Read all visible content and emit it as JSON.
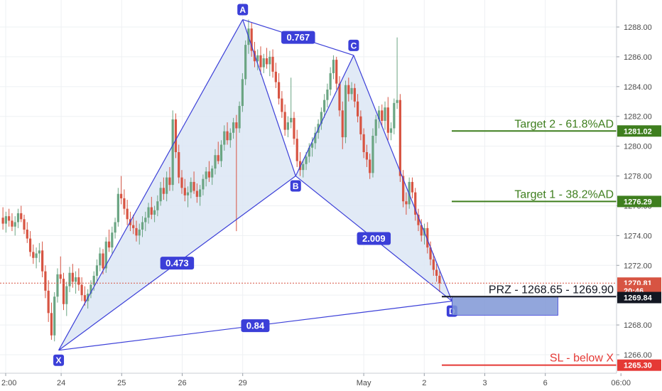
{
  "chart_data": {
    "type": "candlestick",
    "title": "",
    "y_axis": {
      "range": [
        1264.3,
        1289.5
      ],
      "ticks": [
        1266.0,
        1268.0,
        1270.0,
        1272.0,
        1274.0,
        1276.0,
        1278.0,
        1280.0,
        1282.0,
        1284.0,
        1286.0,
        1288.0
      ],
      "tick_labels": [
        "1266.00",
        "1268.00",
        "1270.00",
        "1272.00",
        "1274.00",
        "1276.00",
        "1278.00",
        "1280.00",
        "1282.00",
        "1284.00",
        "1286.00",
        "1288.00"
      ]
    },
    "x_axis": {
      "range_hours": [
        0,
        284
      ],
      "tick_labels": [
        {
          "label": "2:00",
          "hour": 0
        },
        {
          "label": "24",
          "hour": 22
        },
        {
          "label": "25",
          "hour": 46
        },
        {
          "label": "26",
          "hour": 70
        },
        {
          "label": "29",
          "hour": 94
        },
        {
          "label": "May",
          "hour": 142
        },
        {
          "label": "2",
          "hour": 166
        },
        {
          "label": "3",
          "hour": 190
        },
        {
          "label": "6",
          "hour": 214
        },
        {
          "label": "06:00",
          "hour": 244
        }
      ]
    },
    "grid": true,
    "colors": {
      "up": "#6ba583",
      "down": "#d75442",
      "pattern_line": "#3b3fd8",
      "pattern_fill": "#dce6f5",
      "target": "#3f7f1f",
      "stop": "#e53935",
      "prz_box": "#7f97d6"
    },
    "harmonic_pattern": {
      "points": [
        {
          "label": "X",
          "hour": 21,
          "price": 1266.3
        },
        {
          "label": "A",
          "hour": 94,
          "price": 1288.5
        },
        {
          "label": "B",
          "hour": 115,
          "price": 1278.0
        },
        {
          "label": "C",
          "hour": 138,
          "price": 1286.1
        },
        {
          "label": "D",
          "hour": 177,
          "price": 1269.6
        }
      ],
      "ratios": [
        {
          "label": "0.473",
          "between": [
            "X",
            "B"
          ]
        },
        {
          "label": "0.767",
          "between": [
            "A",
            "C"
          ]
        },
        {
          "label": "2.009",
          "between": [
            "B",
            "D"
          ]
        },
        {
          "label": "0.84",
          "between": [
            "X",
            "D"
          ]
        }
      ]
    },
    "annotations": [
      {
        "text": "Target 2 - 61.8%AD",
        "price": 1281.02,
        "color": "#3f7f1f"
      },
      {
        "text": "Target 1 - 38.2%AD",
        "price": 1276.29,
        "color": "#3f7f1f"
      },
      {
        "text": "PRZ - 1268.65 - 1269.90",
        "price": 1269.9,
        "color": "#131722"
      },
      {
        "text": "SL - below X",
        "price": 1265.3,
        "color": "#e53935"
      }
    ],
    "prz_zone": {
      "from_hour": 177,
      "to_hour": 219,
      "price_low": 1268.65,
      "price_high": 1269.9
    },
    "price_tags": [
      {
        "text": "1281.02",
        "price": 1281.02,
        "bg": "#3f7f1f",
        "fg": "#ffffff"
      },
      {
        "text": "1276.29",
        "price": 1276.29,
        "bg": "#3f7f1f",
        "fg": "#ffffff"
      },
      {
        "text": "1270.81",
        "price": 1270.81,
        "bg": "#d75442",
        "fg": "#ffffff"
      },
      {
        "text": "20:46",
        "price": 1270.3,
        "bg": "#d75442",
        "fg": "#ffffff"
      },
      {
        "text": "1269.84",
        "price": 1269.84,
        "bg": "#131722",
        "fg": "#ffffff"
      },
      {
        "text": "1265.30",
        "price": 1265.3,
        "bg": "#e53935",
        "fg": "#ffffff"
      }
    ],
    "last_price": 1270.81,
    "candles": [
      {
        "o": 1275.2,
        "h": 1275.9,
        "l": 1274.4,
        "c": 1274.8
      },
      {
        "o": 1274.8,
        "h": 1275.6,
        "l": 1274.2,
        "c": 1275.3
      },
      {
        "o": 1275.3,
        "h": 1275.8,
        "l": 1274.6,
        "c": 1275.0
      },
      {
        "o": 1275.0,
        "h": 1275.5,
        "l": 1274.3,
        "c": 1274.6
      },
      {
        "o": 1274.6,
        "h": 1275.3,
        "l": 1274.0,
        "c": 1274.9
      },
      {
        "o": 1274.9,
        "h": 1275.8,
        "l": 1274.5,
        "c": 1275.5
      },
      {
        "o": 1275.5,
        "h": 1276.0,
        "l": 1274.9,
        "c": 1275.1
      },
      {
        "o": 1275.1,
        "h": 1275.4,
        "l": 1274.1,
        "c": 1274.4
      },
      {
        "o": 1274.4,
        "h": 1274.9,
        "l": 1273.5,
        "c": 1273.8
      },
      {
        "o": 1273.8,
        "h": 1274.3,
        "l": 1272.6,
        "c": 1272.9
      },
      {
        "o": 1272.9,
        "h": 1273.4,
        "l": 1272.1,
        "c": 1272.5
      },
      {
        "o": 1272.5,
        "h": 1273.2,
        "l": 1271.8,
        "c": 1272.8
      },
      {
        "o": 1272.8,
        "h": 1273.5,
        "l": 1272.2,
        "c": 1273.0
      },
      {
        "o": 1273.0,
        "h": 1273.6,
        "l": 1271.2,
        "c": 1271.6
      },
      {
        "o": 1271.6,
        "h": 1272.0,
        "l": 1269.8,
        "c": 1270.3
      },
      {
        "o": 1270.3,
        "h": 1271.0,
        "l": 1268.2,
        "c": 1268.8
      },
      {
        "o": 1268.8,
        "h": 1269.5,
        "l": 1267.0,
        "c": 1267.3
      },
      {
        "o": 1267.3,
        "h": 1270.2,
        "l": 1266.9,
        "c": 1269.9
      },
      {
        "o": 1269.9,
        "h": 1271.8,
        "l": 1269.5,
        "c": 1271.4
      },
      {
        "o": 1271.4,
        "h": 1272.6,
        "l": 1270.8,
        "c": 1271.1
      },
      {
        "o": 1271.1,
        "h": 1271.5,
        "l": 1269.0,
        "c": 1269.4
      },
      {
        "o": 1269.4,
        "h": 1270.9,
        "l": 1268.6,
        "c": 1270.6
      },
      {
        "o": 1270.6,
        "h": 1271.9,
        "l": 1270.2,
        "c": 1271.5
      },
      {
        "o": 1271.5,
        "h": 1272.1,
        "l": 1270.5,
        "c": 1270.9
      },
      {
        "o": 1270.9,
        "h": 1271.6,
        "l": 1270.1,
        "c": 1271.2
      },
      {
        "o": 1271.2,
        "h": 1271.8,
        "l": 1270.3,
        "c": 1270.7
      },
      {
        "o": 1270.7,
        "h": 1271.2,
        "l": 1269.6,
        "c": 1270.0
      },
      {
        "o": 1270.0,
        "h": 1270.6,
        "l": 1269.3,
        "c": 1269.6
      },
      {
        "o": 1269.6,
        "h": 1270.4,
        "l": 1269.1,
        "c": 1270.1
      },
      {
        "o": 1270.1,
        "h": 1271.0,
        "l": 1269.8,
        "c": 1270.7
      },
      {
        "o": 1270.7,
        "h": 1271.6,
        "l": 1270.3,
        "c": 1271.3
      },
      {
        "o": 1271.3,
        "h": 1272.4,
        "l": 1270.9,
        "c": 1272.0
      },
      {
        "o": 1272.0,
        "h": 1273.2,
        "l": 1271.6,
        "c": 1272.8
      },
      {
        "o": 1272.8,
        "h": 1273.1,
        "l": 1271.4,
        "c": 1271.8
      },
      {
        "o": 1271.8,
        "h": 1273.9,
        "l": 1271.5,
        "c": 1273.6
      },
      {
        "o": 1273.6,
        "h": 1274.4,
        "l": 1272.9,
        "c": 1273.2
      },
      {
        "o": 1273.2,
        "h": 1274.6,
        "l": 1272.8,
        "c": 1274.2
      },
      {
        "o": 1274.2,
        "h": 1275.2,
        "l": 1273.8,
        "c": 1274.9
      },
      {
        "o": 1274.9,
        "h": 1277.2,
        "l": 1274.6,
        "c": 1276.8
      },
      {
        "o": 1276.8,
        "h": 1278.0,
        "l": 1276.1,
        "c": 1276.5
      },
      {
        "o": 1276.5,
        "h": 1277.1,
        "l": 1275.4,
        "c": 1275.8
      },
      {
        "o": 1275.8,
        "h": 1276.4,
        "l": 1274.7,
        "c": 1275.1
      },
      {
        "o": 1275.1,
        "h": 1275.6,
        "l": 1274.3,
        "c": 1274.7
      },
      {
        "o": 1274.7,
        "h": 1275.4,
        "l": 1274.1,
        "c": 1274.5
      },
      {
        "o": 1274.5,
        "h": 1275.0,
        "l": 1273.6,
        "c": 1274.0
      },
      {
        "o": 1274.0,
        "h": 1274.8,
        "l": 1273.4,
        "c": 1274.4
      },
      {
        "o": 1274.4,
        "h": 1275.3,
        "l": 1273.9,
        "c": 1274.9
      },
      {
        "o": 1274.9,
        "h": 1275.6,
        "l": 1274.3,
        "c": 1275.2
      },
      {
        "o": 1275.2,
        "h": 1276.2,
        "l": 1274.8,
        "c": 1275.9
      },
      {
        "o": 1275.9,
        "h": 1276.6,
        "l": 1275.1,
        "c": 1275.4
      },
      {
        "o": 1275.4,
        "h": 1276.0,
        "l": 1274.9,
        "c": 1275.7
      },
      {
        "o": 1275.7,
        "h": 1276.7,
        "l": 1275.3,
        "c": 1276.3
      },
      {
        "o": 1276.3,
        "h": 1277.6,
        "l": 1276.0,
        "c": 1277.2
      },
      {
        "o": 1277.2,
        "h": 1277.9,
        "l": 1276.4,
        "c": 1276.8
      },
      {
        "o": 1276.8,
        "h": 1278.3,
        "l": 1276.3,
        "c": 1277.9
      },
      {
        "o": 1277.9,
        "h": 1278.6,
        "l": 1277.0,
        "c": 1277.4
      },
      {
        "o": 1277.4,
        "h": 1282.4,
        "l": 1277.0,
        "c": 1281.8
      },
      {
        "o": 1281.8,
        "h": 1282.2,
        "l": 1279.2,
        "c": 1279.6
      },
      {
        "o": 1279.6,
        "h": 1280.1,
        "l": 1277.5,
        "c": 1277.9
      },
      {
        "o": 1277.9,
        "h": 1278.4,
        "l": 1276.8,
        "c": 1277.2
      },
      {
        "o": 1277.2,
        "h": 1277.8,
        "l": 1276.3,
        "c": 1276.7
      },
      {
        "o": 1276.7,
        "h": 1277.3,
        "l": 1275.9,
        "c": 1276.9
      },
      {
        "o": 1276.9,
        "h": 1277.9,
        "l": 1276.5,
        "c": 1277.6
      },
      {
        "o": 1277.6,
        "h": 1278.3,
        "l": 1276.8,
        "c": 1277.0
      },
      {
        "o": 1277.0,
        "h": 1277.5,
        "l": 1276.2,
        "c": 1276.6
      },
      {
        "o": 1276.6,
        "h": 1277.4,
        "l": 1276.0,
        "c": 1277.1
      },
      {
        "o": 1277.1,
        "h": 1278.1,
        "l": 1276.7,
        "c": 1277.8
      },
      {
        "o": 1277.8,
        "h": 1278.6,
        "l": 1277.3,
        "c": 1278.3
      },
      {
        "o": 1278.3,
        "h": 1279.0,
        "l": 1277.6,
        "c": 1277.9
      },
      {
        "o": 1277.9,
        "h": 1278.7,
        "l": 1277.4,
        "c": 1278.5
      },
      {
        "o": 1278.5,
        "h": 1279.8,
        "l": 1278.1,
        "c": 1279.4
      },
      {
        "o": 1279.4,
        "h": 1280.3,
        "l": 1278.8,
        "c": 1279.0
      },
      {
        "o": 1279.0,
        "h": 1280.4,
        "l": 1278.6,
        "c": 1280.1
      },
      {
        "o": 1280.1,
        "h": 1281.4,
        "l": 1279.7,
        "c": 1281.0
      },
      {
        "o": 1281.0,
        "h": 1281.6,
        "l": 1280.1,
        "c": 1280.4
      },
      {
        "o": 1280.4,
        "h": 1281.2,
        "l": 1279.9,
        "c": 1280.9
      },
      {
        "o": 1280.9,
        "h": 1281.9,
        "l": 1280.5,
        "c": 1281.6
      },
      {
        "o": 1281.6,
        "h": 1282.1,
        "l": 1274.3,
        "c": 1281.2
      },
      {
        "o": 1281.2,
        "h": 1283.0,
        "l": 1280.9,
        "c": 1282.7
      },
      {
        "o": 1282.7,
        "h": 1284.9,
        "l": 1282.3,
        "c": 1284.5
      },
      {
        "o": 1284.5,
        "h": 1287.1,
        "l": 1284.1,
        "c": 1286.8
      },
      {
        "o": 1286.8,
        "h": 1288.5,
        "l": 1286.2,
        "c": 1287.9
      },
      {
        "o": 1287.9,
        "h": 1288.3,
        "l": 1286.0,
        "c": 1286.4
      },
      {
        "o": 1286.4,
        "h": 1287.0,
        "l": 1285.3,
        "c": 1285.7
      },
      {
        "o": 1285.7,
        "h": 1286.5,
        "l": 1285.1,
        "c": 1286.1
      },
      {
        "o": 1286.1,
        "h": 1286.7,
        "l": 1284.8,
        "c": 1285.3
      },
      {
        "o": 1285.3,
        "h": 1286.2,
        "l": 1284.9,
        "c": 1285.9
      },
      {
        "o": 1285.9,
        "h": 1286.6,
        "l": 1285.2,
        "c": 1285.5
      },
      {
        "o": 1285.5,
        "h": 1286.4,
        "l": 1284.7,
        "c": 1286.0
      },
      {
        "o": 1286.0,
        "h": 1286.5,
        "l": 1284.6,
        "c": 1285.0
      },
      {
        "o": 1285.0,
        "h": 1285.6,
        "l": 1283.9,
        "c": 1284.3
      },
      {
        "o": 1284.3,
        "h": 1284.9,
        "l": 1282.8,
        "c": 1283.2
      },
      {
        "o": 1283.2,
        "h": 1283.7,
        "l": 1281.9,
        "c": 1282.3
      },
      {
        "o": 1282.3,
        "h": 1282.8,
        "l": 1280.7,
        "c": 1281.1
      },
      {
        "o": 1281.1,
        "h": 1282.0,
        "l": 1280.6,
        "c": 1281.6
      },
      {
        "o": 1281.6,
        "h": 1284.6,
        "l": 1281.2,
        "c": 1281.9
      },
      {
        "o": 1281.9,
        "h": 1282.3,
        "l": 1280.1,
        "c": 1280.5
      },
      {
        "o": 1280.5,
        "h": 1281.1,
        "l": 1278.6,
        "c": 1279.0
      },
      {
        "o": 1279.0,
        "h": 1279.6,
        "l": 1278.0,
        "c": 1278.4
      },
      {
        "o": 1278.4,
        "h": 1279.1,
        "l": 1277.9,
        "c": 1278.8
      },
      {
        "o": 1278.8,
        "h": 1279.6,
        "l": 1278.4,
        "c": 1279.3
      },
      {
        "o": 1279.3,
        "h": 1280.2,
        "l": 1278.9,
        "c": 1279.9
      },
      {
        "o": 1279.9,
        "h": 1280.6,
        "l": 1279.3,
        "c": 1280.2
      },
      {
        "o": 1280.2,
        "h": 1281.3,
        "l": 1279.8,
        "c": 1280.9
      },
      {
        "o": 1280.9,
        "h": 1281.8,
        "l": 1280.5,
        "c": 1281.5
      },
      {
        "o": 1281.5,
        "h": 1282.6,
        "l": 1281.1,
        "c": 1282.3
      },
      {
        "o": 1282.3,
        "h": 1283.5,
        "l": 1281.9,
        "c": 1283.1
      },
      {
        "o": 1283.1,
        "h": 1284.2,
        "l": 1282.6,
        "c": 1283.8
      },
      {
        "o": 1283.8,
        "h": 1285.3,
        "l": 1283.4,
        "c": 1284.9
      },
      {
        "o": 1284.9,
        "h": 1286.1,
        "l": 1284.5,
        "c": 1285.8
      },
      {
        "o": 1285.8,
        "h": 1286.0,
        "l": 1283.8,
        "c": 1284.2
      },
      {
        "o": 1284.2,
        "h": 1284.7,
        "l": 1282.0,
        "c": 1282.4
      },
      {
        "o": 1282.4,
        "h": 1283.0,
        "l": 1279.8,
        "c": 1280.6
      },
      {
        "o": 1280.6,
        "h": 1284.4,
        "l": 1280.2,
        "c": 1284.1
      },
      {
        "o": 1284.1,
        "h": 1284.6,
        "l": 1283.0,
        "c": 1283.5
      },
      {
        "o": 1283.5,
        "h": 1284.3,
        "l": 1283.1,
        "c": 1283.9
      },
      {
        "o": 1283.9,
        "h": 1284.2,
        "l": 1282.6,
        "c": 1283.0
      },
      {
        "o": 1283.0,
        "h": 1283.5,
        "l": 1281.6,
        "c": 1282.0
      },
      {
        "o": 1282.0,
        "h": 1282.4,
        "l": 1280.4,
        "c": 1280.8
      },
      {
        "o": 1280.8,
        "h": 1281.2,
        "l": 1279.2,
        "c": 1279.6
      },
      {
        "o": 1279.6,
        "h": 1280.1,
        "l": 1278.6,
        "c": 1279.1
      },
      {
        "o": 1279.1,
        "h": 1279.5,
        "l": 1277.8,
        "c": 1278.2
      },
      {
        "o": 1278.2,
        "h": 1281.2,
        "l": 1277.9,
        "c": 1280.7
      },
      {
        "o": 1280.7,
        "h": 1282.1,
        "l": 1280.2,
        "c": 1281.8
      },
      {
        "o": 1281.8,
        "h": 1282.7,
        "l": 1281.2,
        "c": 1282.4
      },
      {
        "o": 1282.4,
        "h": 1282.8,
        "l": 1281.3,
        "c": 1281.7
      },
      {
        "o": 1281.7,
        "h": 1283.0,
        "l": 1281.1,
        "c": 1282.6
      },
      {
        "o": 1282.6,
        "h": 1283.3,
        "l": 1280.4,
        "c": 1280.9
      },
      {
        "o": 1280.9,
        "h": 1281.6,
        "l": 1280.4,
        "c": 1281.2
      },
      {
        "o": 1281.2,
        "h": 1283.2,
        "l": 1280.8,
        "c": 1282.9
      },
      {
        "o": 1282.9,
        "h": 1287.3,
        "l": 1282.5,
        "c": 1283.1
      },
      {
        "o": 1283.1,
        "h": 1283.5,
        "l": 1277.6,
        "c": 1278.0
      },
      {
        "o": 1278.0,
        "h": 1278.4,
        "l": 1275.9,
        "c": 1276.3
      },
      {
        "o": 1276.3,
        "h": 1276.9,
        "l": 1275.4,
        "c": 1276.1
      },
      {
        "o": 1276.1,
        "h": 1277.9,
        "l": 1275.8,
        "c": 1277.6
      },
      {
        "o": 1277.6,
        "h": 1277.9,
        "l": 1276.5,
        "c": 1276.9
      },
      {
        "o": 1276.9,
        "h": 1277.2,
        "l": 1275.0,
        "c": 1275.4
      },
      {
        "o": 1275.4,
        "h": 1275.8,
        "l": 1274.3,
        "c": 1274.7
      },
      {
        "o": 1274.7,
        "h": 1275.1,
        "l": 1273.6,
        "c": 1274.0
      },
      {
        "o": 1274.0,
        "h": 1274.8,
        "l": 1273.4,
        "c": 1274.5
      },
      {
        "o": 1274.5,
        "h": 1274.9,
        "l": 1272.8,
        "c": 1273.2
      },
      {
        "o": 1273.2,
        "h": 1273.6,
        "l": 1272.0,
        "c": 1272.4
      },
      {
        "o": 1272.4,
        "h": 1272.8,
        "l": 1271.3,
        "c": 1271.7
      },
      {
        "o": 1271.7,
        "h": 1272.1,
        "l": 1270.9,
        "c": 1271.3
      },
      {
        "o": 1271.3,
        "h": 1271.6,
        "l": 1270.2,
        "c": 1270.8
      }
    ]
  }
}
